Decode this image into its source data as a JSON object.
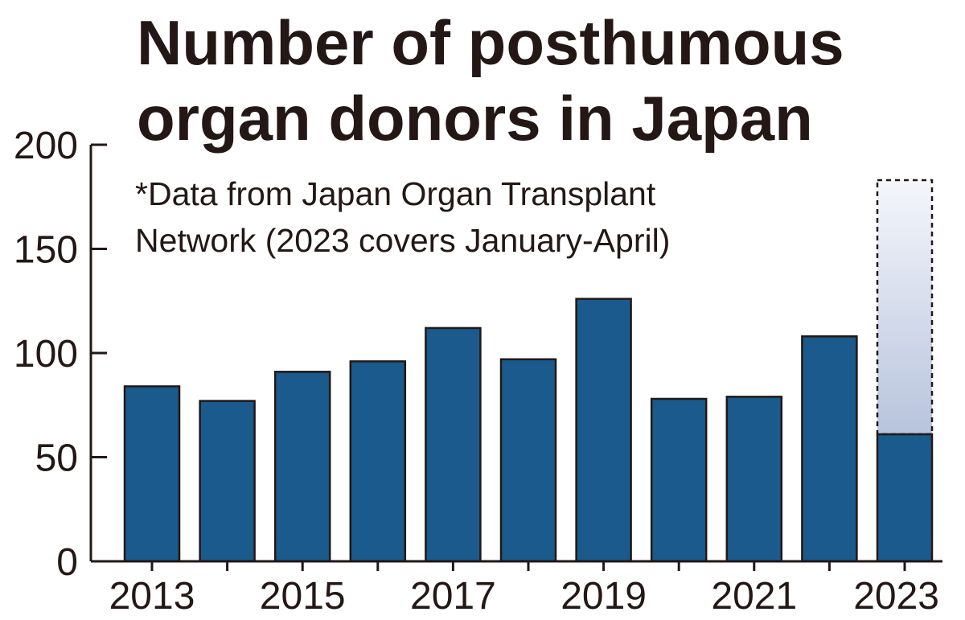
{
  "chart_data": {
    "type": "bar",
    "title_lines": [
      "Number of posthumous",
      "organ donors in Japan"
    ],
    "note_lines": [
      "*Data from Japan Organ Transplant",
      "Network (2023 covers January-April)"
    ],
    "categories": [
      "2013",
      "2014",
      "2015",
      "2016",
      "2017",
      "2018",
      "2019",
      "2020",
      "2021",
      "2022",
      "2023"
    ],
    "x_tick_labels": [
      "2013",
      "2015",
      "2017",
      "2019",
      "2021",
      "2023"
    ],
    "values": [
      84,
      77,
      91,
      96,
      112,
      97,
      126,
      78,
      79,
      108,
      61
    ],
    "projected": {
      "category": "2023",
      "value": 183,
      "style": "dashed outline with gradient fill"
    },
    "y_ticks": [
      0,
      50,
      100,
      150,
      200
    ],
    "ylim": [
      0,
      200
    ],
    "grid": false,
    "legend": "none",
    "colors": {
      "bar": "#1a5a8c",
      "bar_edge": "#231815",
      "axis": "#231815",
      "text": "#231815",
      "projection_top": "#f4f6fb",
      "projection_bottom": "#b8c4dd"
    }
  }
}
